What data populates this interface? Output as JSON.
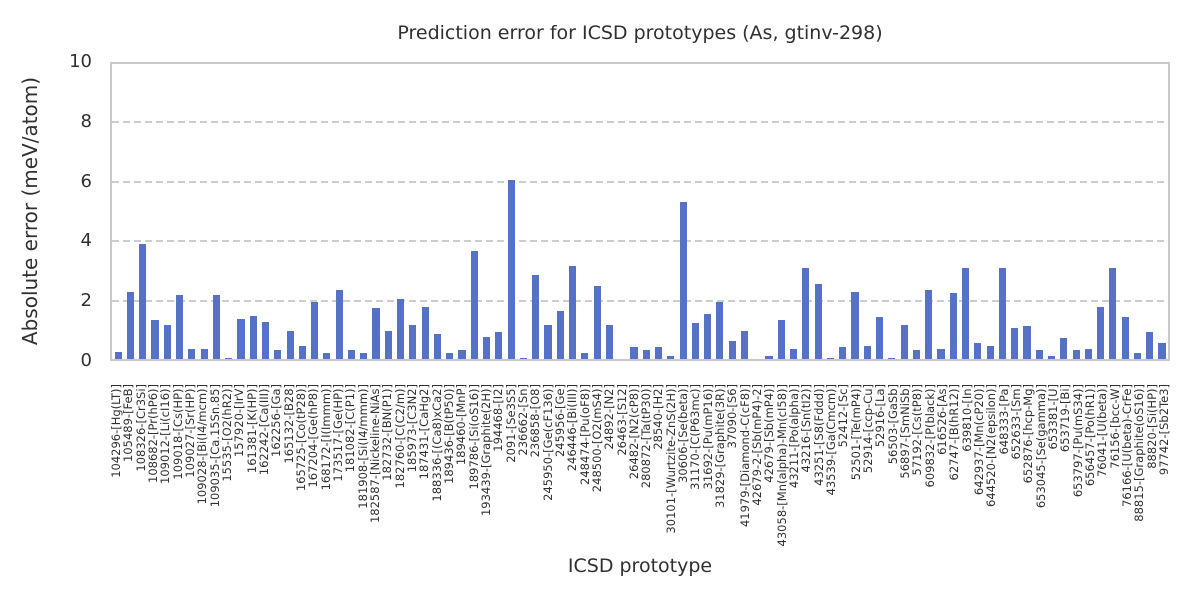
{
  "figure": {
    "background": "#ffffff"
  },
  "chart_data": {
    "type": "bar",
    "title": "Prediction error for ICSD prototypes (As, gtinv-298)",
    "xlabel": "ICSD prototype",
    "ylabel": "Absolute error (meV/atom)",
    "ylim": [
      0,
      10
    ],
    "yticks": [
      0,
      2,
      4,
      6,
      8,
      10
    ],
    "grid": "horizontal-dashed",
    "legend": "none",
    "bar_color": "#5571c8",
    "grid_color": "#cdcdcd",
    "frame_color": "#c9c9c9",
    "text_color": "#303030",
    "categories": [
      "104296-[Hg(LT)]",
      "105489-[FeB]",
      "108326-[Cr3Si]",
      "108682-[Pr(hP6)]",
      "109012-[Li(cI16)]",
      "109018-[Cs(HP)]",
      "109027-[Sr(HP)]",
      "109028-[Bi(I4/mcm)]",
      "109035-[Ca.15Sn.85]",
      "15535-[O2(hR2)]",
      "157920-[IrV]",
      "161381-[K(HP)]",
      "162242-[Ca(III)]",
      "162256-[Ga]",
      "165132-[B28]",
      "165725-[Co(tP28)]",
      "167204-[Ge(hP8)]",
      "168172-[I(Immm)]",
      "173517-[Ge(HP)]",
      "181082-[C(P1)]",
      "181908-[Si(I4/mmm)]",
      "182587-[Nickeline-NiAs]",
      "182732-[BN(P1)]",
      "182760-[C(C2/m)]",
      "185973-[C3N2]",
      "187431-[CaHg2]",
      "188336-[(Ca8)xCa2]",
      "189436-[B(tP50)]",
      "189460-[MnP]",
      "189786-[Si(oS16)]",
      "193439-[Graphite(2H)]",
      "194468-[I2]",
      "2091-[Se3S5]",
      "236662-[Sn]",
      "236858-[O8]",
      "245950-[Ge(cF136)]",
      "245956-[Ge]",
      "246446-[Bi(III)]",
      "248474-[Pu(oF8)]",
      "248500-[O2(mS4)]",
      "24892-[N2]",
      "26463-[S12]",
      "26482-[N2(cP8)]",
      "280872-[Ta(tP30)]",
      "28540-[H2]",
      "30101-[Wurtzite-ZnS(2H)]",
      "30606-[Se(beta)]",
      "31170-[C(P63mc)]",
      "31692-[Pu(mP16)]",
      "31829-[Graphite(3R)]",
      "37090-[S6]",
      "41979-[Diamond-C(cF8)]",
      "42679-2-[Sb(mP4)-2]",
      "42679-[Sb(mP4)]",
      "43058-[Mn(alpha)-Mn(cI58)]",
      "43211-[Po(alpha)]",
      "43216-[Sn(tI2)]",
      "43251-[S8(Fddd)]",
      "43539-[Ga(Cmcm)]",
      "52412-[Sc]",
      "52501-[Te(mP4)]",
      "52914-[ccp-Cu]",
      "52916-[La]",
      "56503-[GaSb]",
      "56897-[SmNiSb]",
      "57192-[Cs(tP8)]",
      "609832-[P(black)]",
      "616526-[As]",
      "62747-[B(hR12)]",
      "639810-[In]",
      "642937-[Mn(cP20)]",
      "644520-[N2(epsilon)]",
      "648333-[Pa]",
      "652633-[Sm]",
      "652876-[hcp-Mg]",
      "653045-[Se(gamma)]",
      "653381-[U]",
      "653719-[Bi]",
      "653797-[Pu(mS34)]",
      "656457-[Po(hR1)]",
      "76041-[U(beta)]",
      "76156-[bcc-W]",
      "76166-[U(beta)-CrFe]",
      "88815-[Graphite(oS16)]",
      "88820-[Si(HP)]",
      "97742-[Sb2Te3]"
    ],
    "values": [
      0.25,
      2.25,
      3.85,
      1.3,
      1.15,
      2.15,
      0.35,
      0.35,
      2.15,
      0.05,
      1.35,
      1.45,
      1.25,
      0.3,
      0.95,
      0.45,
      1.9,
      0.2,
      2.3,
      0.3,
      0.2,
      1.7,
      0.95,
      2.0,
      1.15,
      1.75,
      0.85,
      0.2,
      0.3,
      3.6,
      0.75,
      0.9,
      6.0,
      0.05,
      2.8,
      1.15,
      1.6,
      3.1,
      0.2,
      2.45,
      1.15,
      0.0,
      0.4,
      0.3,
      0.4,
      0.1,
      5.25,
      1.2,
      1.5,
      1.9,
      0.6,
      0.95,
      0.0,
      0.1,
      1.3,
      0.35,
      3.05,
      2.5,
      0.05,
      0.4,
      2.25,
      0.45,
      1.4,
      0.05,
      1.15,
      0.3,
      2.3,
      0.35,
      2.2,
      3.05,
      0.55,
      0.45,
      3.05,
      1.05,
      1.1,
      0.3,
      0.1,
      0.7,
      0.3,
      0.35,
      1.75,
      3.05,
      1.4,
      0.2,
      0.9,
      0.55
    ]
  }
}
